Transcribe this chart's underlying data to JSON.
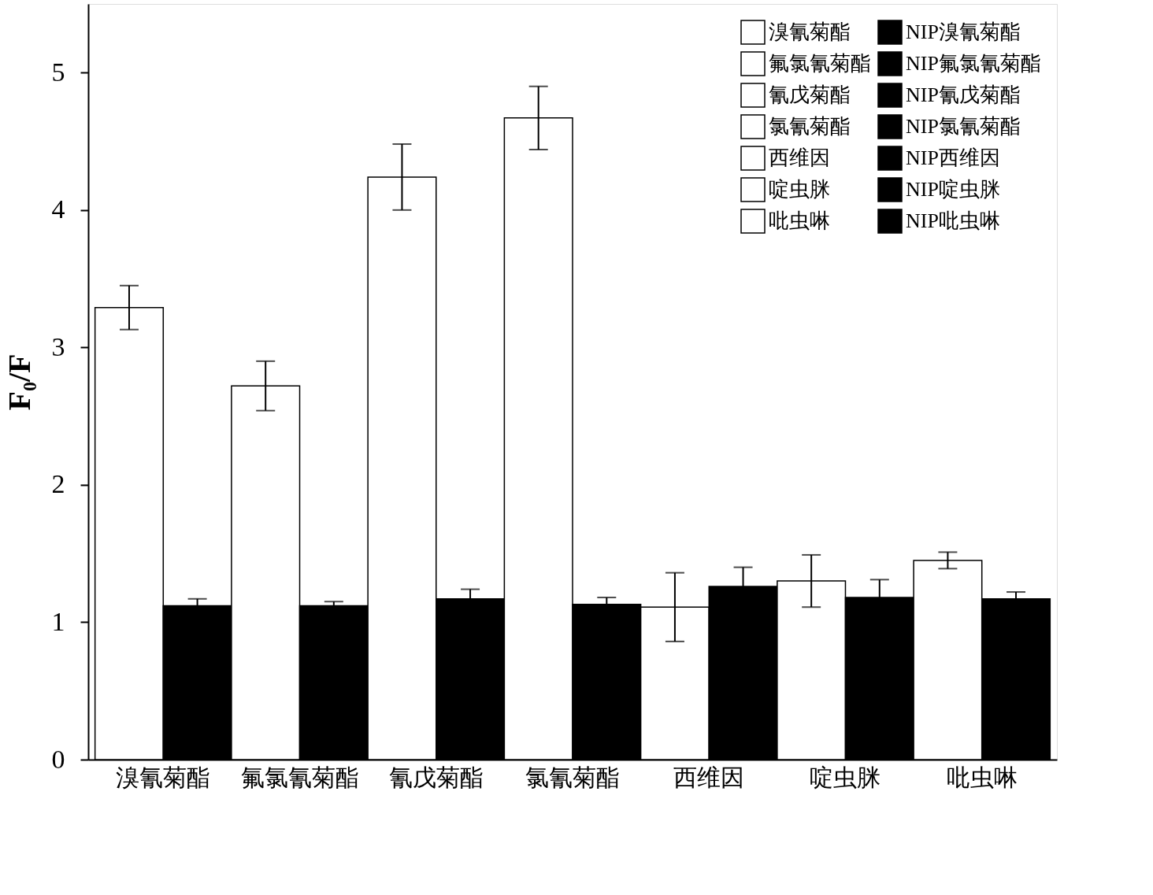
{
  "chart_data": {
    "type": "bar",
    "ylabel": "F₀/F",
    "categories": [
      "溴氰菊酯",
      "氟氯氰菊酯",
      "氰戊菊酯",
      "氯氰菊酯",
      "西维因",
      "啶虫脒",
      "吡虫啉"
    ],
    "series": [
      {
        "name": "溴氰菊酯",
        "color": "#ffffff",
        "values": [
          3.29,
          null,
          null,
          null,
          null,
          null,
          null
        ],
        "errors": [
          0.16,
          null,
          null,
          null,
          null,
          null,
          null
        ]
      },
      {
        "name": "氟氯氰菊酯",
        "color": "#ffffff",
        "values": [
          null,
          2.72,
          null,
          null,
          null,
          null,
          null
        ],
        "errors": [
          null,
          0.18,
          null,
          null,
          null,
          null,
          null
        ]
      },
      {
        "name": "氰戊菊酯",
        "color": "#ffffff",
        "values": [
          null,
          null,
          4.24,
          null,
          null,
          null,
          null
        ],
        "errors": [
          null,
          null,
          0.24,
          null,
          null,
          null,
          null
        ]
      },
      {
        "name": "氯氰菊酯",
        "color": "#ffffff",
        "values": [
          null,
          null,
          null,
          4.67,
          null,
          null,
          null
        ],
        "errors": [
          null,
          null,
          null,
          0.23,
          null,
          null,
          null
        ]
      },
      {
        "name": "西维因",
        "color": "#ffffff",
        "values": [
          null,
          null,
          null,
          null,
          1.11,
          null,
          null
        ],
        "errors": [
          null,
          null,
          null,
          null,
          0.25,
          null,
          null
        ]
      },
      {
        "name": "啶虫脒",
        "color": "#ffffff",
        "values": [
          null,
          null,
          null,
          null,
          null,
          1.3,
          null
        ],
        "errors": [
          null,
          null,
          null,
          null,
          null,
          0.19,
          null
        ]
      },
      {
        "name": "吡虫啉",
        "color": "#ffffff",
        "values": [
          null,
          null,
          null,
          null,
          null,
          null,
          1.45
        ],
        "errors": [
          null,
          null,
          null,
          null,
          null,
          null,
          0.06
        ]
      },
      {
        "name": "NIP溴氰菊酯",
        "color": "#000000",
        "values": [
          1.12,
          null,
          null,
          null,
          null,
          null,
          null
        ],
        "errors": [
          0.05,
          null,
          null,
          null,
          null,
          null,
          null
        ]
      },
      {
        "name": "NIP氟氯氰菊酯",
        "color": "#000000",
        "values": [
          null,
          1.12,
          null,
          null,
          null,
          null,
          null
        ],
        "errors": [
          null,
          0.03,
          null,
          null,
          null,
          null,
          null
        ]
      },
      {
        "name": "NIP氰戊菊酯",
        "color": "#000000",
        "values": [
          null,
          null,
          1.17,
          null,
          null,
          null,
          null
        ],
        "errors": [
          null,
          null,
          0.07,
          null,
          null,
          null,
          null
        ]
      },
      {
        "name": "NIP氯氰菊酯",
        "color": "#000000",
        "values": [
          null,
          null,
          null,
          1.13,
          null,
          null,
          null
        ],
        "errors": [
          null,
          null,
          null,
          0.05,
          null,
          null,
          null
        ]
      },
      {
        "name": "NIP西维因",
        "color": "#000000",
        "values": [
          null,
          null,
          null,
          null,
          1.26,
          null,
          null
        ],
        "errors": [
          null,
          null,
          null,
          null,
          0.14,
          null,
          null
        ]
      },
      {
        "name": "NIP啶虫脒",
        "color": "#000000",
        "values": [
          null,
          null,
          null,
          null,
          null,
          1.18,
          null
        ],
        "errors": [
          null,
          null,
          null,
          null,
          null,
          0.13,
          null
        ]
      },
      {
        "name": "NIP吡虫啉",
        "color": "#000000",
        "values": [
          null,
          null,
          null,
          null,
          null,
          null,
          1.17
        ],
        "errors": [
          null,
          null,
          null,
          null,
          null,
          null,
          0.05
        ]
      }
    ],
    "ylim": [
      0,
      5.5
    ],
    "yticks": [
      0,
      1,
      2,
      3,
      4,
      5
    ],
    "grid": false,
    "legend": "top right"
  }
}
